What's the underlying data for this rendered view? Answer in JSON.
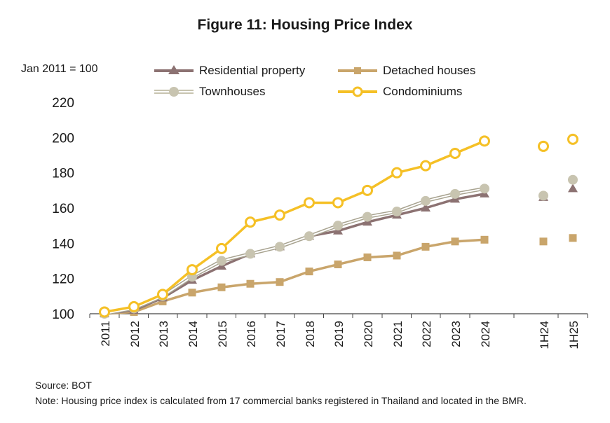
{
  "title": "Figure 11: Housing Price Index",
  "unit_label": "Jan 2011 = 100",
  "footer": {
    "source": "Source: BOT",
    "note": "Note: Housing price index is calculated from 17 commercial banks registered in Thailand and located in the BMR."
  },
  "colors": {
    "residential": "#8c7272",
    "detached": "#c9a56b",
    "townhouses": "#c8c4b0",
    "condominiums": "#f5c026",
    "axis": "#444444"
  },
  "chart_data": {
    "type": "line",
    "categories": [
      "2011",
      "2012",
      "2013",
      "2014",
      "2015",
      "2016",
      "2017",
      "2018",
      "2019",
      "2020",
      "2021",
      "2022",
      "2023",
      "2024",
      "1H24",
      "1H25"
    ],
    "ylim": [
      100,
      220
    ],
    "yticks": [
      100,
      120,
      140,
      160,
      180,
      200,
      220
    ],
    "legend": "top",
    "grid": false,
    "series": [
      {
        "key": "residential",
        "name": "Residential property",
        "marker": "triangle",
        "values": [
          100,
          102,
          109,
          119,
          127,
          134,
          138,
          144,
          147,
          152,
          156,
          160,
          165,
          168,
          166,
          171
        ]
      },
      {
        "key": "detached",
        "name": "Detached houses",
        "marker": "square",
        "values": [
          100,
          101,
          107,
          112,
          115,
          117,
          118,
          124,
          128,
          132,
          133,
          138,
          141,
          142,
          141,
          143
        ]
      },
      {
        "key": "townhouses",
        "name": "Townhouses",
        "marker": "circle",
        "values": [
          100,
          103,
          110,
          121,
          130,
          134,
          138,
          144,
          150,
          155,
          158,
          164,
          168,
          171,
          167,
          176
        ]
      },
      {
        "key": "condominiums",
        "name": "Condominiums",
        "marker": "ring",
        "values": [
          101,
          104,
          111,
          125,
          137,
          152,
          156,
          163,
          163,
          170,
          180,
          184,
          191,
          198,
          195,
          199
        ]
      }
    ]
  }
}
